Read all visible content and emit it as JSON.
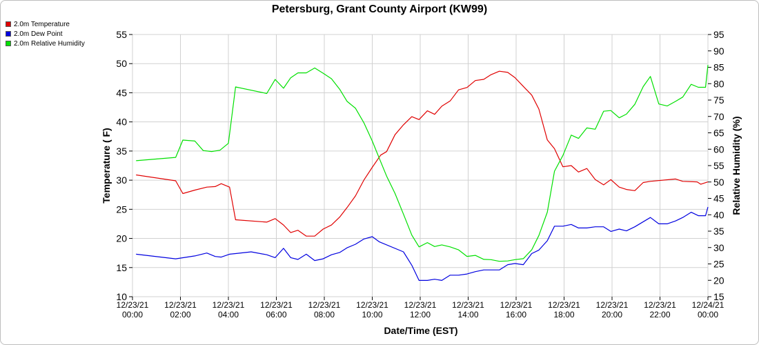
{
  "chart_data": {
    "type": "line",
    "title": "Petersburg, Grant County Airport (KW99)",
    "xlabel": "Date/Time (EST)",
    "ylabel_left": "Temperature ( F)",
    "ylabel_right": "Relative Humidity (%)",
    "ylim_left": [
      10,
      55
    ],
    "ylim_right": [
      15,
      95
    ],
    "yticks_left": [
      10,
      15,
      20,
      25,
      30,
      35,
      40,
      45,
      50,
      55
    ],
    "yticks_right": [
      15,
      20,
      25,
      30,
      35,
      40,
      45,
      50,
      55,
      60,
      65,
      70,
      75,
      80,
      85,
      90,
      95
    ],
    "xlim_hours": [
      0,
      24
    ],
    "xticks": [
      {
        "hour": 0,
        "date": "12/23/21",
        "time": "00:00"
      },
      {
        "hour": 2,
        "date": "12/23/21",
        "time": "02:00"
      },
      {
        "hour": 4,
        "date": "12/23/21",
        "time": "04:00"
      },
      {
        "hour": 6,
        "date": "12/23/21",
        "time": "06:00"
      },
      {
        "hour": 8,
        "date": "12/23/21",
        "time": "08:00"
      },
      {
        "hour": 10,
        "date": "12/23/21",
        "time": "10:00"
      },
      {
        "hour": 12,
        "date": "12/23/21",
        "time": "12:00"
      },
      {
        "hour": 14,
        "date": "12/23/21",
        "time": "14:00"
      },
      {
        "hour": 16,
        "date": "12/23/21",
        "time": "16:00"
      },
      {
        "hour": 18,
        "date": "12/23/21",
        "time": "18:00"
      },
      {
        "hour": 20,
        "date": "12/23/21",
        "time": "20:00"
      },
      {
        "hour": 22,
        "date": "12/23/21",
        "time": "22:00"
      },
      {
        "hour": 24,
        "date": "12/24/21",
        "time": "00:00"
      }
    ],
    "grid": true,
    "legend_position": "top-left",
    "series": [
      {
        "name": "2.0m Temperature",
        "color": "#e00000",
        "axis": "left",
        "points": [
          [
            0.15,
            30.9
          ],
          [
            1.8,
            29.9
          ],
          [
            2.1,
            27.7
          ],
          [
            2.6,
            28.3
          ],
          [
            3.1,
            28.8
          ],
          [
            3.45,
            28.9
          ],
          [
            3.7,
            29.4
          ],
          [
            4.05,
            28.8
          ],
          [
            4.3,
            23.2
          ],
          [
            5.6,
            22.8
          ],
          [
            5.95,
            23.4
          ],
          [
            6.3,
            22.3
          ],
          [
            6.6,
            21.0
          ],
          [
            6.9,
            21.4
          ],
          [
            7.25,
            20.4
          ],
          [
            7.6,
            20.4
          ],
          [
            7.95,
            21.6
          ],
          [
            8.3,
            22.3
          ],
          [
            8.65,
            23.7
          ],
          [
            8.95,
            25.3
          ],
          [
            9.3,
            27.3
          ],
          [
            9.65,
            30.0
          ],
          [
            10.0,
            32.2
          ],
          [
            10.35,
            34.3
          ],
          [
            10.6,
            34.9
          ],
          [
            10.95,
            37.8
          ],
          [
            11.3,
            39.5
          ],
          [
            11.65,
            40.9
          ],
          [
            11.95,
            40.4
          ],
          [
            12.3,
            41.9
          ],
          [
            12.6,
            41.3
          ],
          [
            12.9,
            42.7
          ],
          [
            13.25,
            43.6
          ],
          [
            13.6,
            45.5
          ],
          [
            13.95,
            45.9
          ],
          [
            14.3,
            47.1
          ],
          [
            14.65,
            47.3
          ],
          [
            14.95,
            48.1
          ],
          [
            15.3,
            48.7
          ],
          [
            15.65,
            48.5
          ],
          [
            15.95,
            47.6
          ],
          [
            16.3,
            46.1
          ],
          [
            16.65,
            44.6
          ],
          [
            16.95,
            42.2
          ],
          [
            17.3,
            36.9
          ],
          [
            17.6,
            35.4
          ],
          [
            17.95,
            32.3
          ],
          [
            18.3,
            32.5
          ],
          [
            18.6,
            31.4
          ],
          [
            18.95,
            32.0
          ],
          [
            19.3,
            30.1
          ],
          [
            19.65,
            29.2
          ],
          [
            19.95,
            30.1
          ],
          [
            20.3,
            28.8
          ],
          [
            20.6,
            28.4
          ],
          [
            20.95,
            28.2
          ],
          [
            21.3,
            29.6
          ],
          [
            21.6,
            29.8
          ],
          [
            22.65,
            30.2
          ],
          [
            22.95,
            29.8
          ],
          [
            23.55,
            29.7
          ],
          [
            23.7,
            29.3
          ],
          [
            24.0,
            29.7
          ]
        ]
      },
      {
        "name": "2.0m Dew Point",
        "color": "#0000e0",
        "axis": "left",
        "points": [
          [
            0.15,
            17.3
          ],
          [
            1.8,
            16.5
          ],
          [
            2.6,
            17.0
          ],
          [
            3.1,
            17.5
          ],
          [
            3.45,
            16.9
          ],
          [
            3.7,
            16.8
          ],
          [
            4.05,
            17.3
          ],
          [
            4.3,
            17.4
          ],
          [
            4.95,
            17.7
          ],
          [
            5.6,
            17.2
          ],
          [
            5.95,
            16.7
          ],
          [
            6.3,
            18.3
          ],
          [
            6.6,
            16.7
          ],
          [
            6.9,
            16.4
          ],
          [
            7.25,
            17.3
          ],
          [
            7.6,
            16.2
          ],
          [
            7.95,
            16.5
          ],
          [
            8.3,
            17.2
          ],
          [
            8.65,
            17.6
          ],
          [
            8.95,
            18.4
          ],
          [
            9.3,
            19.0
          ],
          [
            9.65,
            19.9
          ],
          [
            10.0,
            20.3
          ],
          [
            10.3,
            19.4
          ],
          [
            11.3,
            17.7
          ],
          [
            11.65,
            15.4
          ],
          [
            11.95,
            12.8
          ],
          [
            12.3,
            12.8
          ],
          [
            12.6,
            13.0
          ],
          [
            12.9,
            12.8
          ],
          [
            13.25,
            13.7
          ],
          [
            13.6,
            13.7
          ],
          [
            13.95,
            13.9
          ],
          [
            14.3,
            14.3
          ],
          [
            14.65,
            14.6
          ],
          [
            15.3,
            14.6
          ],
          [
            15.65,
            15.5
          ],
          [
            15.95,
            15.7
          ],
          [
            16.3,
            15.5
          ],
          [
            16.65,
            17.4
          ],
          [
            16.95,
            18.0
          ],
          [
            17.3,
            19.6
          ],
          [
            17.6,
            22.1
          ],
          [
            17.95,
            22.1
          ],
          [
            18.3,
            22.4
          ],
          [
            18.6,
            21.8
          ],
          [
            18.95,
            21.8
          ],
          [
            19.3,
            22.0
          ],
          [
            19.65,
            22.0
          ],
          [
            19.95,
            21.2
          ],
          [
            20.3,
            21.6
          ],
          [
            20.6,
            21.3
          ],
          [
            20.95,
            22.0
          ],
          [
            21.6,
            23.6
          ],
          [
            21.95,
            22.5
          ],
          [
            22.3,
            22.5
          ],
          [
            22.65,
            23.0
          ],
          [
            22.95,
            23.6
          ],
          [
            23.3,
            24.5
          ],
          [
            23.6,
            23.9
          ],
          [
            23.9,
            23.9
          ],
          [
            24.0,
            25.4
          ]
        ]
      },
      {
        "name": "2.0m Relative Humidity",
        "color": "#00e000",
        "axis": "right",
        "points": [
          [
            0.15,
            56.5
          ],
          [
            1.8,
            57.5
          ],
          [
            2.1,
            62.8
          ],
          [
            2.6,
            62.5
          ],
          [
            2.95,
            59.6
          ],
          [
            3.3,
            59.3
          ],
          [
            3.65,
            59.7
          ],
          [
            4.0,
            61.8
          ],
          [
            4.3,
            79.0
          ],
          [
            5.6,
            77.0
          ],
          [
            5.95,
            81.3
          ],
          [
            6.3,
            78.6
          ],
          [
            6.6,
            81.8
          ],
          [
            6.9,
            83.3
          ],
          [
            7.25,
            83.3
          ],
          [
            7.6,
            84.8
          ],
          [
            7.95,
            83.2
          ],
          [
            8.3,
            81.5
          ],
          [
            8.65,
            78.2
          ],
          [
            8.95,
            74.6
          ],
          [
            9.3,
            72.5
          ],
          [
            9.65,
            68.1
          ],
          [
            10.0,
            62.5
          ],
          [
            10.35,
            56.2
          ],
          [
            10.6,
            51.8
          ],
          [
            10.95,
            46.5
          ],
          [
            11.3,
            40.2
          ],
          [
            11.65,
            33.8
          ],
          [
            11.95,
            30.2
          ],
          [
            12.3,
            31.5
          ],
          [
            12.6,
            30.3
          ],
          [
            12.9,
            30.8
          ],
          [
            13.25,
            30.2
          ],
          [
            13.6,
            29.3
          ],
          [
            13.95,
            27.3
          ],
          [
            14.3,
            27.6
          ],
          [
            14.65,
            26.4
          ],
          [
            14.95,
            26.3
          ],
          [
            15.3,
            25.8
          ],
          [
            15.65,
            25.9
          ],
          [
            15.95,
            26.3
          ],
          [
            16.3,
            26.6
          ],
          [
            16.65,
            29.3
          ],
          [
            16.95,
            33.7
          ],
          [
            17.3,
            40.8
          ],
          [
            17.6,
            53.3
          ],
          [
            17.95,
            58.1
          ],
          [
            18.3,
            64.3
          ],
          [
            18.6,
            63.3
          ],
          [
            18.95,
            66.5
          ],
          [
            19.3,
            66.1
          ],
          [
            19.65,
            71.6
          ],
          [
            19.95,
            71.8
          ],
          [
            20.3,
            69.6
          ],
          [
            20.6,
            70.7
          ],
          [
            20.95,
            73.7
          ],
          [
            21.3,
            79.1
          ],
          [
            21.6,
            82.2
          ],
          [
            21.95,
            73.8
          ],
          [
            22.3,
            73.2
          ],
          [
            22.65,
            74.6
          ],
          [
            22.95,
            75.9
          ],
          [
            23.3,
            79.8
          ],
          [
            23.6,
            78.9
          ],
          [
            23.9,
            78.9
          ],
          [
            24.0,
            85.7
          ]
        ]
      }
    ]
  }
}
